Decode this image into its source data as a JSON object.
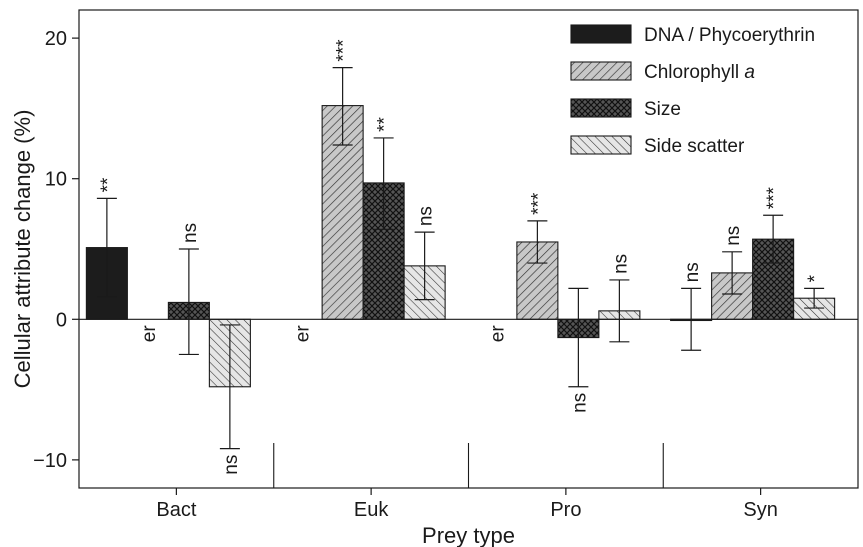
{
  "chart_data": {
    "type": "bar",
    "xlabel": "Prey type",
    "ylabel": "Cellular attribute change (%)",
    "ylim": [
      -12,
      22
    ],
    "y_ticks": [
      -10,
      0,
      10,
      20
    ],
    "y_tick_labels": [
      "−10",
      "0",
      "10",
      "20"
    ],
    "categories": [
      "Bact",
      "Euk",
      "Pro",
      "Syn"
    ],
    "series": [
      {
        "name": "DNA / Phycoerythrin",
        "values": [
          5.1,
          null,
          null,
          0.0
        ],
        "err_low": [
          3.5,
          null,
          null,
          2.2
        ],
        "err_high": [
          3.5,
          null,
          null,
          2.2
        ],
        "sig": [
          "**",
          "er",
          "er",
          "ns"
        ]
      },
      {
        "name": "Chlorophyll a",
        "values": [
          null,
          15.2,
          5.5,
          3.3
        ],
        "err_low": [
          null,
          2.8,
          1.5,
          1.5
        ],
        "err_high": [
          null,
          2.7,
          1.5,
          1.5
        ],
        "sig": [
          "er",
          "***",
          "***",
          "ns"
        ]
      },
      {
        "name": "Size",
        "values": [
          1.2,
          9.7,
          -1.3,
          5.7
        ],
        "err_low": [
          3.7,
          3.3,
          3.5,
          1.7
        ],
        "err_high": [
          3.8,
          3.2,
          3.5,
          1.7
        ],
        "sig": [
          "ns",
          "**",
          "ns",
          "***"
        ]
      },
      {
        "name": "Side scatter",
        "values": [
          -4.8,
          3.8,
          0.6,
          1.5
        ],
        "err_low": [
          4.4,
          2.4,
          2.2,
          0.7
        ],
        "err_high": [
          4.4,
          2.4,
          2.2,
          0.7
        ],
        "sig": [
          "ns",
          "ns",
          "ns",
          "*"
        ]
      }
    ],
    "legend": {
      "position": "top-right",
      "items": [
        "DNA / Phycoerythrin",
        "Chlorophyll",
        "Size",
        "Side scatter"
      ],
      "italic_suffix": [
        "",
        "a",
        "",
        ""
      ]
    },
    "colors": {
      "solid": "#1c1c1c",
      "hatch_fill": "#c8c8c8",
      "crosshatch_fill": "#555555",
      "light_fill": "#e6e6e6",
      "line": "#1a1a1a"
    },
    "grid": false
  }
}
